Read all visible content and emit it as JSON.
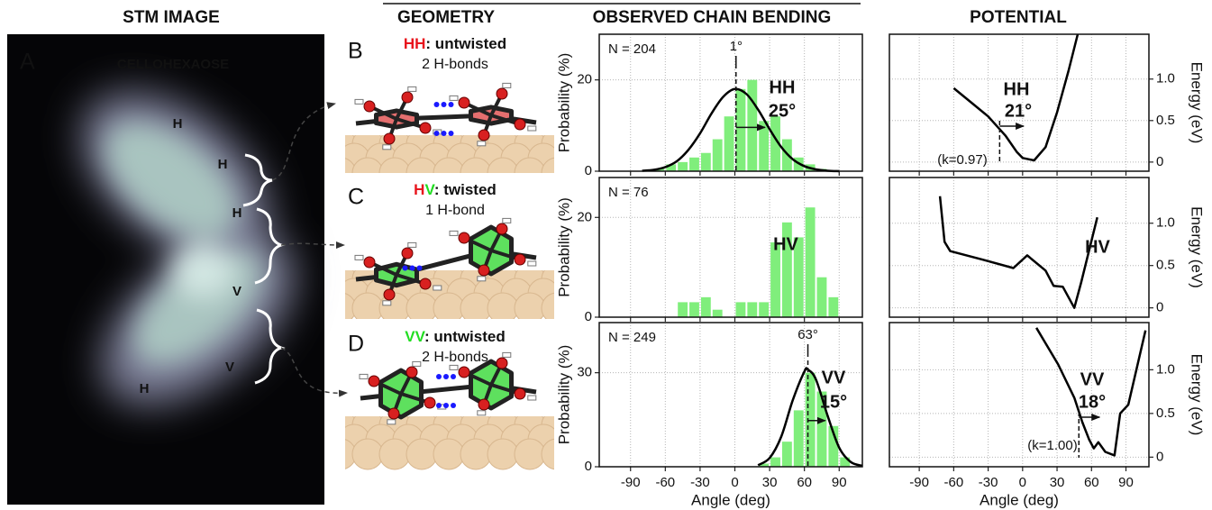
{
  "headers": [
    "STM IMAGE",
    "GEOMETRY",
    "OBSERVED CHAIN BENDING",
    "POTENTIAL"
  ],
  "stm": {
    "panel": "A",
    "title": "CELLOHEXAOSE",
    "units": [
      "H",
      "H",
      "H",
      "V",
      "V",
      "H"
    ]
  },
  "geometry": [
    {
      "panel": "B",
      "parts": [
        {
          "text": "HH",
          "color": "#e8141c"
        },
        {
          "text": ": untwisted",
          "color": "#111111"
        }
      ],
      "bonds": "2 H-bonds",
      "bonds_color": "#1a1aff"
    },
    {
      "panel": "C",
      "parts": [
        {
          "text": "H",
          "color": "#e8141c"
        },
        {
          "text": "V",
          "color": "#22dd22"
        },
        {
          "text": ": twisted",
          "color": "#111111"
        }
      ],
      "bonds": "1 H-bond",
      "bonds_color": "#1a1aff"
    },
    {
      "panel": "D",
      "parts": [
        {
          "text": "VV",
          "color": "#22dd22"
        },
        {
          "text": ": untwisted",
          "color": "#111111"
        }
      ],
      "bonds": "2 H-bonds",
      "bonds_color": "#1a1aff"
    }
  ],
  "chart_data": [
    {
      "type": "histogram",
      "ylabel": "Probability (%)",
      "color": "#80ee7c",
      "bins": [
        -80,
        -70,
        -60,
        -50,
        -40,
        -30,
        -20,
        -10,
        0,
        10,
        20,
        30,
        40,
        50,
        60,
        70,
        80
      ],
      "values": [
        0.3,
        0.5,
        1.5,
        2,
        3,
        4,
        7,
        12,
        18,
        20,
        11,
        12,
        7,
        3,
        1.5,
        0.5
      ],
      "fit": {
        "color": "#000000",
        "x": [
          -80,
          -70,
          -60,
          -50,
          -40,
          -30,
          -20,
          -10,
          0,
          10,
          20,
          30,
          40,
          50,
          60,
          70,
          80,
          90
        ],
        "values": [
          0.1,
          0.3,
          0.9,
          2.2,
          4.7,
          8.3,
          12.7,
          16.3,
          18,
          16.9,
          13.5,
          9.2,
          5.3,
          2.6,
          1.1,
          0.4,
          0.1,
          0
        ]
      },
      "xlim": [
        -117,
        110
      ],
      "ylim": [
        0,
        30
      ],
      "xticks": [
        -90,
        -60,
        -30,
        0,
        30,
        60,
        90
      ],
      "yticks": [
        0,
        20
      ],
      "grid": true,
      "xtick_labels": false,
      "n_label": "N = 204",
      "peak_x": 1,
      "peak_label": "1°",
      "label": "HH",
      "width": 25,
      "width_label": "25°"
    },
    {
      "type": "histogram",
      "ylabel": "Probability (%)",
      "color": "#80ee7c",
      "bins": [
        -50,
        -40,
        -30,
        -20,
        -10,
        0,
        10,
        20,
        30,
        40,
        50,
        60,
        70,
        80,
        90
      ],
      "values": [
        3,
        3,
        4,
        1.5,
        0,
        3,
        3,
        3,
        15,
        19,
        16,
        22,
        8,
        4
      ],
      "xlim": [
        -117,
        110
      ],
      "ylim": [
        0,
        28
      ],
      "xticks": [
        -90,
        -60,
        -30,
        0,
        30,
        60,
        90
      ],
      "yticks": [
        0,
        20
      ],
      "grid": true,
      "xtick_labels": false,
      "n_label": "N = 76",
      "label": "HV"
    },
    {
      "type": "histogram",
      "ylabel": "Probability (%)",
      "xlabel": "Angle (deg)",
      "color": "#80ee7c",
      "bins": [
        20,
        30,
        40,
        50,
        60,
        70,
        80,
        90,
        100
      ],
      "values": [
        1,
        3,
        8,
        18,
        30,
        24,
        13,
        3
      ],
      "fit": {
        "color": "#000000",
        "x": [
          20,
          30,
          40,
          50,
          60,
          63,
          70,
          80,
          90,
          100,
          110
        ],
        "values": [
          0.5,
          2.8,
          9.6,
          21.3,
          30.4,
          31,
          27.8,
          16.3,
          6.1,
          1.5,
          0.3
        ]
      },
      "xlim": [
        -117,
        110
      ],
      "ylim": [
        0,
        46
      ],
      "xticks": [
        -90,
        -60,
        -30,
        0,
        30,
        60,
        90
      ],
      "yticks": [
        0,
        30
      ],
      "grid": true,
      "xtick_labels": true,
      "n_label": "N = 249",
      "peak_x": 63,
      "peak_label": "63°",
      "label": "VV",
      "width": 15,
      "width_label": "15°"
    },
    {
      "type": "line",
      "ylabel": "Energy (eV)",
      "color": "#000000",
      "x": [
        -60,
        -45,
        -30,
        -15,
        -5,
        0,
        10,
        20,
        30,
        40,
        48
      ],
      "values": [
        0.89,
        0.72,
        0.55,
        0.32,
        0.12,
        0.05,
        0.02,
        0.18,
        0.6,
        1.1,
        1.54
      ],
      "xlim": [
        -116,
        110
      ],
      "ylim": [
        -0.11,
        1.54
      ],
      "xticks": [
        -90,
        -60,
        -30,
        0,
        30,
        60,
        90
      ],
      "yticks": [
        0,
        0.5,
        {
          "value": 1,
          "label": "1.0"
        }
      ],
      "grid": true,
      "xtick_labels": false,
      "label": "HH",
      "marker_x": -20,
      "width": 21,
      "width_label": "21°",
      "k_label": "(k=0.97)"
    },
    {
      "type": "line",
      "ylabel": "Energy (eV)",
      "color": "#000000",
      "x": [
        -72,
        -68,
        -63,
        -35,
        -8,
        4,
        20,
        27,
        35,
        45,
        51,
        65
      ],
      "values": [
        1.32,
        0.78,
        0.67,
        0.57,
        0.47,
        0.62,
        0.44,
        0.26,
        0.25,
        0,
        0.3,
        1.07
      ],
      "xlim": [
        -116,
        110
      ],
      "ylim": [
        -0.11,
        1.54
      ],
      "xticks": [
        -90,
        -60,
        -30,
        0,
        30,
        60,
        90
      ],
      "yticks": [
        0,
        0.5,
        {
          "value": 1,
          "label": "1.0"
        }
      ],
      "grid": true,
      "xtick_labels": false,
      "label": "HV"
    },
    {
      "type": "line",
      "ylabel": "Energy (eV)",
      "xlabel": "Angle (deg)",
      "color": "#000000",
      "x": [
        12,
        31,
        45,
        52,
        58,
        62,
        66,
        72,
        80,
        85,
        92,
        107
      ],
      "values": [
        1.48,
        1.06,
        0.68,
        0.4,
        0.2,
        0.1,
        0.17,
        0.06,
        0.02,
        0.5,
        0.6,
        1.45
      ],
      "xlim": [
        -116,
        110
      ],
      "ylim": [
        -0.11,
        1.54
      ],
      "xticks": [
        -90,
        -60,
        -30,
        0,
        30,
        60,
        90
      ],
      "yticks": [
        0,
        0.5,
        {
          "value": 1,
          "label": "1.0"
        }
      ],
      "grid": true,
      "xtick_labels": true,
      "label": "VV",
      "marker_x": 49,
      "width": 18,
      "width_label": "18°",
      "k_label": "(k=1.00)"
    }
  ]
}
